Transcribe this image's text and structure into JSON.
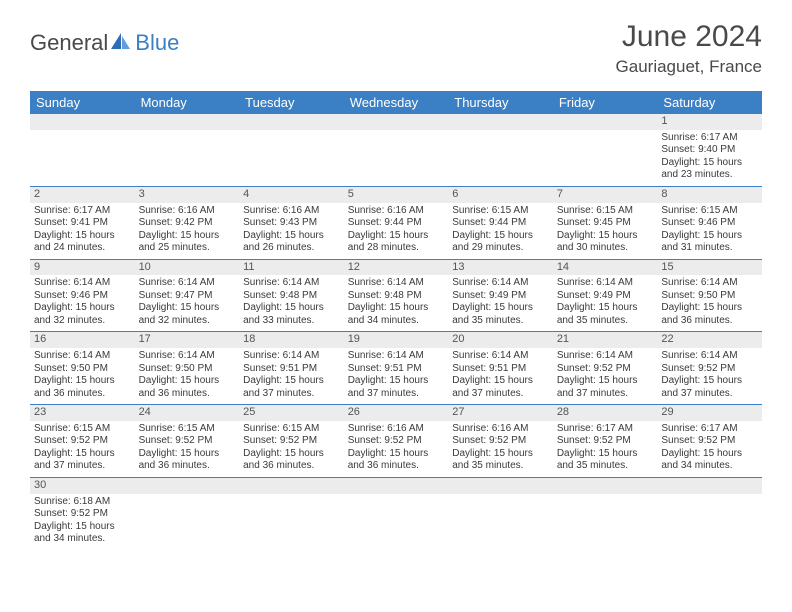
{
  "brand": {
    "text1": "General",
    "text2": "Blue"
  },
  "title": "June 2024",
  "location": "Gauriaguet, France",
  "colors": {
    "header_bg": "#3b7fc4",
    "header_fg": "#ffffff",
    "daynum_bg": "#ececec",
    "border": "#3b7fc4",
    "text": "#3a3a3a"
  },
  "day_headers": [
    "Sunday",
    "Monday",
    "Tuesday",
    "Wednesday",
    "Thursday",
    "Friday",
    "Saturday"
  ],
  "weeks": [
    [
      {
        "empty": true
      },
      {
        "empty": true
      },
      {
        "empty": true
      },
      {
        "empty": true
      },
      {
        "empty": true
      },
      {
        "empty": true
      },
      {
        "num": "1",
        "sunrise": "Sunrise: 6:17 AM",
        "sunset": "Sunset: 9:40 PM",
        "day1": "Daylight: 15 hours",
        "day2": "and 23 minutes."
      }
    ],
    [
      {
        "num": "2",
        "sunrise": "Sunrise: 6:17 AM",
        "sunset": "Sunset: 9:41 PM",
        "day1": "Daylight: 15 hours",
        "day2": "and 24 minutes."
      },
      {
        "num": "3",
        "sunrise": "Sunrise: 6:16 AM",
        "sunset": "Sunset: 9:42 PM",
        "day1": "Daylight: 15 hours",
        "day2": "and 25 minutes."
      },
      {
        "num": "4",
        "sunrise": "Sunrise: 6:16 AM",
        "sunset": "Sunset: 9:43 PM",
        "day1": "Daylight: 15 hours",
        "day2": "and 26 minutes."
      },
      {
        "num": "5",
        "sunrise": "Sunrise: 6:16 AM",
        "sunset": "Sunset: 9:44 PM",
        "day1": "Daylight: 15 hours",
        "day2": "and 28 minutes."
      },
      {
        "num": "6",
        "sunrise": "Sunrise: 6:15 AM",
        "sunset": "Sunset: 9:44 PM",
        "day1": "Daylight: 15 hours",
        "day2": "and 29 minutes."
      },
      {
        "num": "7",
        "sunrise": "Sunrise: 6:15 AM",
        "sunset": "Sunset: 9:45 PM",
        "day1": "Daylight: 15 hours",
        "day2": "and 30 minutes."
      },
      {
        "num": "8",
        "sunrise": "Sunrise: 6:15 AM",
        "sunset": "Sunset: 9:46 PM",
        "day1": "Daylight: 15 hours",
        "day2": "and 31 minutes."
      }
    ],
    [
      {
        "num": "9",
        "sunrise": "Sunrise: 6:14 AM",
        "sunset": "Sunset: 9:46 PM",
        "day1": "Daylight: 15 hours",
        "day2": "and 32 minutes."
      },
      {
        "num": "10",
        "sunrise": "Sunrise: 6:14 AM",
        "sunset": "Sunset: 9:47 PM",
        "day1": "Daylight: 15 hours",
        "day2": "and 32 minutes."
      },
      {
        "num": "11",
        "sunrise": "Sunrise: 6:14 AM",
        "sunset": "Sunset: 9:48 PM",
        "day1": "Daylight: 15 hours",
        "day2": "and 33 minutes."
      },
      {
        "num": "12",
        "sunrise": "Sunrise: 6:14 AM",
        "sunset": "Sunset: 9:48 PM",
        "day1": "Daylight: 15 hours",
        "day2": "and 34 minutes."
      },
      {
        "num": "13",
        "sunrise": "Sunrise: 6:14 AM",
        "sunset": "Sunset: 9:49 PM",
        "day1": "Daylight: 15 hours",
        "day2": "and 35 minutes."
      },
      {
        "num": "14",
        "sunrise": "Sunrise: 6:14 AM",
        "sunset": "Sunset: 9:49 PM",
        "day1": "Daylight: 15 hours",
        "day2": "and 35 minutes."
      },
      {
        "num": "15",
        "sunrise": "Sunrise: 6:14 AM",
        "sunset": "Sunset: 9:50 PM",
        "day1": "Daylight: 15 hours",
        "day2": "and 36 minutes."
      }
    ],
    [
      {
        "num": "16",
        "sunrise": "Sunrise: 6:14 AM",
        "sunset": "Sunset: 9:50 PM",
        "day1": "Daylight: 15 hours",
        "day2": "and 36 minutes."
      },
      {
        "num": "17",
        "sunrise": "Sunrise: 6:14 AM",
        "sunset": "Sunset: 9:50 PM",
        "day1": "Daylight: 15 hours",
        "day2": "and 36 minutes."
      },
      {
        "num": "18",
        "sunrise": "Sunrise: 6:14 AM",
        "sunset": "Sunset: 9:51 PM",
        "day1": "Daylight: 15 hours",
        "day2": "and 37 minutes."
      },
      {
        "num": "19",
        "sunrise": "Sunrise: 6:14 AM",
        "sunset": "Sunset: 9:51 PM",
        "day1": "Daylight: 15 hours",
        "day2": "and 37 minutes."
      },
      {
        "num": "20",
        "sunrise": "Sunrise: 6:14 AM",
        "sunset": "Sunset: 9:51 PM",
        "day1": "Daylight: 15 hours",
        "day2": "and 37 minutes."
      },
      {
        "num": "21",
        "sunrise": "Sunrise: 6:14 AM",
        "sunset": "Sunset: 9:52 PM",
        "day1": "Daylight: 15 hours",
        "day2": "and 37 minutes."
      },
      {
        "num": "22",
        "sunrise": "Sunrise: 6:14 AM",
        "sunset": "Sunset: 9:52 PM",
        "day1": "Daylight: 15 hours",
        "day2": "and 37 minutes."
      }
    ],
    [
      {
        "num": "23",
        "sunrise": "Sunrise: 6:15 AM",
        "sunset": "Sunset: 9:52 PM",
        "day1": "Daylight: 15 hours",
        "day2": "and 37 minutes."
      },
      {
        "num": "24",
        "sunrise": "Sunrise: 6:15 AM",
        "sunset": "Sunset: 9:52 PM",
        "day1": "Daylight: 15 hours",
        "day2": "and 36 minutes."
      },
      {
        "num": "25",
        "sunrise": "Sunrise: 6:15 AM",
        "sunset": "Sunset: 9:52 PM",
        "day1": "Daylight: 15 hours",
        "day2": "and 36 minutes."
      },
      {
        "num": "26",
        "sunrise": "Sunrise: 6:16 AM",
        "sunset": "Sunset: 9:52 PM",
        "day1": "Daylight: 15 hours",
        "day2": "and 36 minutes."
      },
      {
        "num": "27",
        "sunrise": "Sunrise: 6:16 AM",
        "sunset": "Sunset: 9:52 PM",
        "day1": "Daylight: 15 hours",
        "day2": "and 35 minutes."
      },
      {
        "num": "28",
        "sunrise": "Sunrise: 6:17 AM",
        "sunset": "Sunset: 9:52 PM",
        "day1": "Daylight: 15 hours",
        "day2": "and 35 minutes."
      },
      {
        "num": "29",
        "sunrise": "Sunrise: 6:17 AM",
        "sunset": "Sunset: 9:52 PM",
        "day1": "Daylight: 15 hours",
        "day2": "and 34 minutes."
      }
    ],
    [
      {
        "num": "30",
        "sunrise": "Sunrise: 6:18 AM",
        "sunset": "Sunset: 9:52 PM",
        "day1": "Daylight: 15 hours",
        "day2": "and 34 minutes."
      },
      {
        "empty": true
      },
      {
        "empty": true
      },
      {
        "empty": true
      },
      {
        "empty": true
      },
      {
        "empty": true
      },
      {
        "empty": true
      }
    ]
  ]
}
